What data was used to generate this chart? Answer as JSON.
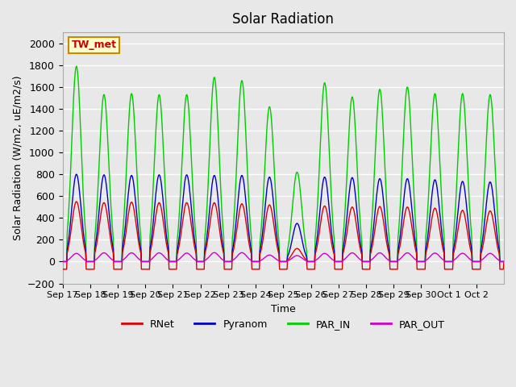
{
  "title": "Solar Radiation",
  "ylabel": "Solar Radiation (W/m2, uE/m2/s)",
  "xlabel": "Time",
  "ylim": [
    -200,
    2100
  ],
  "total_days": 16,
  "background_color": "#e8e8e8",
  "plot_bg_color": "#e8e8e8",
  "grid_color": "#ffffff",
  "station_label": "TW_met",
  "station_box_facecolor": "#ffffcc",
  "station_box_edgecolor": "#cc8800",
  "colors": {
    "RNet": "#dd0000",
    "Pyranom": "#0000cc",
    "PAR_IN": "#00cc00",
    "PAR_OUT": "#cc00cc"
  },
  "x_tick_labels": [
    "Sep 17",
    "Sep 18",
    "Sep 19",
    "Sep 20",
    "Sep 21",
    "Sep 22",
    "Sep 23",
    "Sep 24",
    "Sep 25",
    "Sep 26",
    "Sep 27",
    "Sep 28",
    "Sep 29",
    "Sep 30",
    "Oct 1",
    "Oct 2"
  ],
  "peaks_RNet": [
    550,
    540,
    545,
    540,
    540,
    540,
    530,
    520,
    120,
    510,
    500,
    505,
    500,
    490,
    470,
    465
  ],
  "peaks_Pyranom": [
    800,
    795,
    790,
    795,
    795,
    790,
    790,
    775,
    350,
    775,
    770,
    760,
    760,
    750,
    735,
    730
  ],
  "peaks_PAR_IN": [
    1790,
    1530,
    1540,
    1530,
    1530,
    1690,
    1660,
    1420,
    820,
    1640,
    1510,
    1580,
    1600,
    1540,
    1540,
    1530
  ],
  "peaks_PAR_OUT": [
    75,
    80,
    80,
    80,
    78,
    82,
    82,
    60,
    55,
    75,
    80,
    80,
    80,
    78,
    76,
    75
  ],
  "night_min_RNet": -70,
  "yticks": [
    -200,
    0,
    200,
    400,
    600,
    800,
    1000,
    1200,
    1400,
    1600,
    1800,
    2000
  ]
}
